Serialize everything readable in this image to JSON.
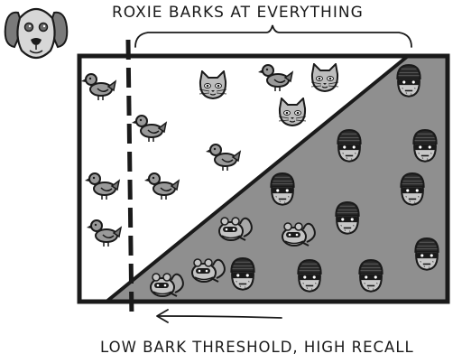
{
  "title": "ROXIE BARKS AT EVERYTHING",
  "threshold_caption": "LOW BARK THRESHOLD, HIGH RECALL",
  "colors": {
    "ink": "#1a1a1a",
    "shaded_region": "#8f8f8f",
    "background": "#ffffff",
    "bird": "#9a9a9a",
    "cat": "#bdbdbd",
    "burglar_face": "#c8c8c8",
    "squirrel": "#c4c4c4"
  },
  "icons": {
    "mascot": "dog-face-icon",
    "bird": "bird-icon",
    "cat": "cat-face-icon",
    "burglar": "burglar-face-icon",
    "squirrel": "squirrel-icon"
  },
  "threshold_line_style": "dashed"
}
